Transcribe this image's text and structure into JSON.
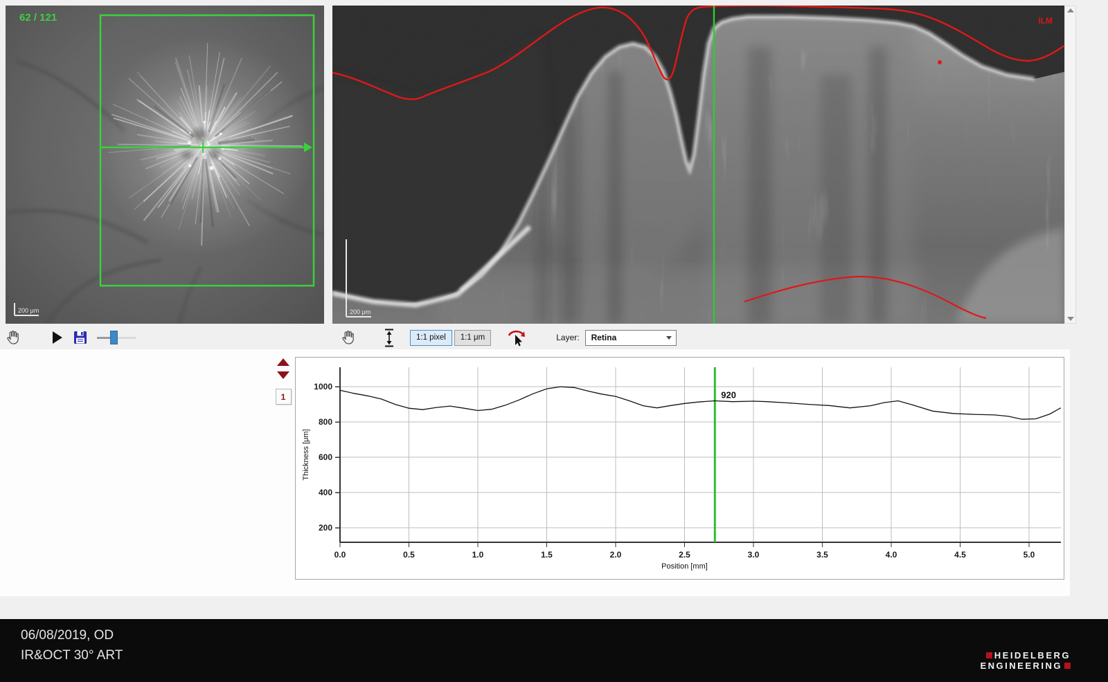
{
  "colors": {
    "overlay_green": "#3ad13c",
    "segmentation_red": "#e01818",
    "marker_green": "#2ebd2e",
    "nav_maroon": "#8a1418",
    "selected_button_blue": "#dcebf8",
    "logo_red": "#b5121b"
  },
  "fundus_panel": {
    "frame_counter": "62 / 121",
    "scale_label": "200 μm"
  },
  "oct_panel": {
    "ilm_label": "ILM",
    "scale_label": "200 μm"
  },
  "oct_toolbar": {
    "pixel_button_label": "1:1 pixel",
    "um_button_label": "1:1 μm",
    "layer_label": "Layer:",
    "layer_value": "Retina"
  },
  "chart_controls": {
    "page_button_label": "1"
  },
  "chart_data": {
    "type": "line",
    "title": "",
    "xlabel": "Position [mm]",
    "ylabel": "Thickness [μm]",
    "xlim": [
      0,
      5.23
    ],
    "ylim": [
      118,
      1110
    ],
    "xticks": [
      0.0,
      0.5,
      1.0,
      1.5,
      2.0,
      2.5,
      3.0,
      3.5,
      4.0,
      4.5,
      5.0
    ],
    "yticks": [
      200,
      400,
      600,
      800,
      1000
    ],
    "grid": true,
    "legend": false,
    "marker": {
      "position_mm": 2.72,
      "value": 920,
      "label": "920"
    },
    "series": [
      {
        "name": "Retina thickness profile",
        "x": [
          0.0,
          0.1,
          0.2,
          0.3,
          0.4,
          0.5,
          0.6,
          0.7,
          0.8,
          0.9,
          1.0,
          1.1,
          1.2,
          1.3,
          1.4,
          1.5,
          1.6,
          1.7,
          1.8,
          1.9,
          2.0,
          2.1,
          2.2,
          2.3,
          2.4,
          2.5,
          2.6,
          2.72,
          2.85,
          3.0,
          3.1,
          3.25,
          3.4,
          3.55,
          3.7,
          3.85,
          3.95,
          4.05,
          4.15,
          4.3,
          4.45,
          4.6,
          4.75,
          4.85,
          4.95,
          5.05,
          5.15,
          5.23
        ],
        "y": [
          980,
          962,
          948,
          930,
          900,
          878,
          870,
          882,
          890,
          878,
          865,
          872,
          895,
          925,
          960,
          988,
          1000,
          995,
          975,
          958,
          945,
          920,
          892,
          880,
          893,
          905,
          913,
          920,
          915,
          918,
          915,
          908,
          900,
          893,
          880,
          892,
          910,
          920,
          898,
          862,
          848,
          843,
          840,
          832,
          815,
          818,
          845,
          880
        ]
      }
    ]
  },
  "status_bar": {
    "date_and_eye": "06/08/2019, OD",
    "scan_info": "IR&OCT 30° ART"
  },
  "logo": {
    "line1": "HEIDELBERG",
    "line2": "ENGINEERING"
  }
}
